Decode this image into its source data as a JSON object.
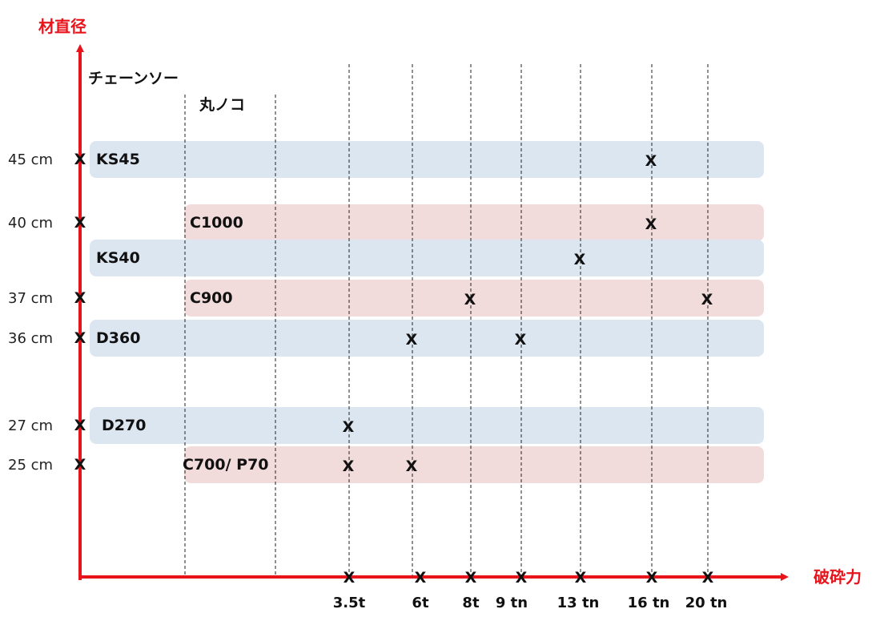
{
  "axes": {
    "y_title": "材直径",
    "x_title": "破砕力",
    "axis_color": "#e8141b"
  },
  "group_headers": {
    "chainsaw": "チェーンソー",
    "circular_saw": "丸ノコ"
  },
  "marker_glyph": "X",
  "y_axis_labels": [
    "45 cm",
    "40 cm",
    "37 cm",
    "36 cm",
    "27 cm",
    "25 cm"
  ],
  "x_axis_labels": [
    "3.5t",
    "6t",
    "8t",
    "9 tn",
    "13 tn",
    "16 tn",
    "20 tn"
  ],
  "colors": {
    "chainsaw_band": "#dce6f1",
    "circular_band": "#f2dcdb"
  },
  "rows": [
    {
      "label": "KS45",
      "group": "chainsaw",
      "diameter": "45 cm",
      "forces": [
        "16 tn"
      ]
    },
    {
      "label": "C1000",
      "group": "circular_saw",
      "diameter": "40 cm",
      "forces": [
        "16 tn"
      ]
    },
    {
      "label": "KS40",
      "group": "chainsaw",
      "diameter": "",
      "forces": [
        "13 tn"
      ]
    },
    {
      "label": "C900",
      "group": "circular_saw",
      "diameter": "37 cm",
      "forces": [
        "8t",
        "20 tn"
      ]
    },
    {
      "label": "D360",
      "group": "chainsaw",
      "diameter": "36 cm",
      "forces": [
        "6t",
        "9 tn"
      ]
    },
    {
      "label": "D270",
      "group": "chainsaw",
      "diameter": "27 cm",
      "forces": [
        "3.5t"
      ]
    },
    {
      "label": "C700/ P70",
      "group": "circular_saw",
      "diameter": "25 cm",
      "forces": [
        "3.5t",
        "6t"
      ]
    }
  ]
}
